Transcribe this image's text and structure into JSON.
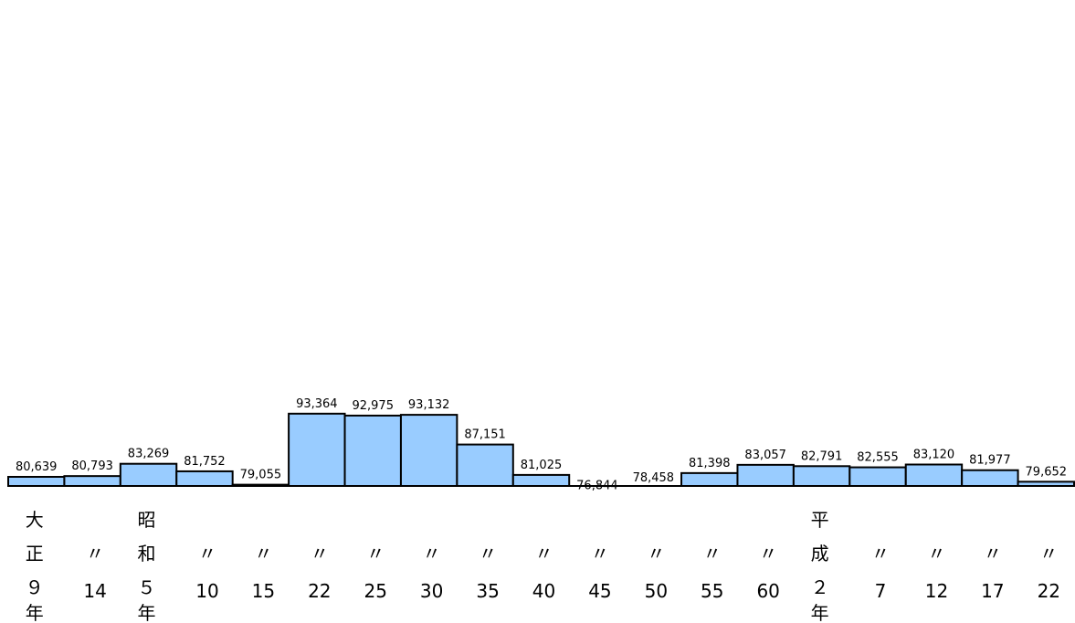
{
  "chart_data": {
    "type": "bar",
    "categories": [
      [
        "大",
        "正",
        "９",
        "年"
      ],
      [
        "〃",
        "14"
      ],
      [
        "昭",
        "和",
        "５",
        "年"
      ],
      [
        "〃",
        "10"
      ],
      [
        "〃",
        "15"
      ],
      [
        "〃",
        "22"
      ],
      [
        "〃",
        "25"
      ],
      [
        "〃",
        "30"
      ],
      [
        "〃",
        "35"
      ],
      [
        "〃",
        "40"
      ],
      [
        "〃",
        "45"
      ],
      [
        "〃",
        "50"
      ],
      [
        "〃",
        "55"
      ],
      [
        "〃",
        "60"
      ],
      [
        "平",
        "成",
        "２",
        "年"
      ],
      [
        "〃",
        "7"
      ],
      [
        "〃",
        "12"
      ],
      [
        "〃",
        "17"
      ],
      [
        "〃",
        "22"
      ]
    ],
    "values": [
      80639,
      80793,
      83269,
      81752,
      79055,
      93364,
      92975,
      93132,
      87151,
      81025,
      76844,
      78458,
      81398,
      83057,
      82791,
      82555,
      83120,
      81977,
      79652
    ],
    "value_labels": [
      "80,639",
      "80,793",
      "83,269",
      "81,752",
      "79,055",
      "93,364",
      "92,975",
      "93,132",
      "87,151",
      "81,025",
      "76,844",
      "78,458",
      "81,398",
      "83,057",
      "82,791",
      "82,555",
      "83,120",
      "81,977",
      "79,652"
    ],
    "ylim": [
      0,
      100000
    ],
    "grid": false,
    "bar_color": "#99ccff",
    "edge_color": "#000000"
  }
}
